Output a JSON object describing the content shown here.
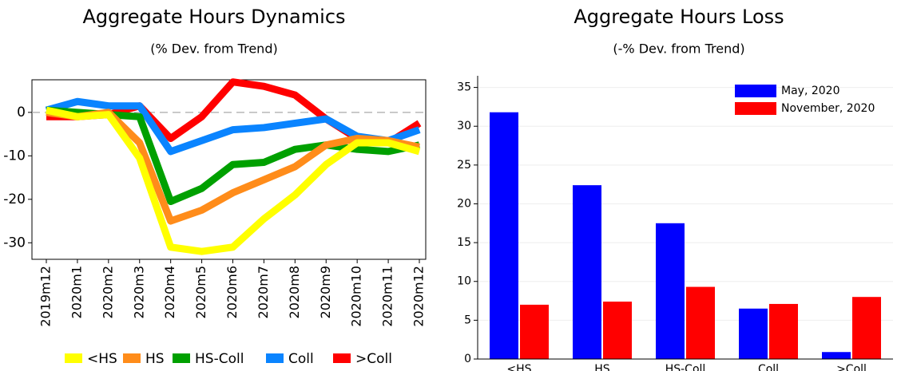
{
  "chart_data": [
    {
      "type": "line",
      "title": "Aggregate Hours Dynamics",
      "subtitle": "(% Dev. from Trend)",
      "categories": [
        "2019m12",
        "2020m1",
        "2020m2",
        "2020m3",
        "2020m4",
        "2020m5",
        "2020m6",
        "2020m7",
        "2020m8",
        "2020m9",
        "2020m10",
        "2020m11",
        "2020m12"
      ],
      "series": [
        {
          "name": "<HS",
          "color": "#ffff00",
          "values": [
            0.5,
            -1,
            -0.5,
            -10.5,
            -31,
            -32,
            -31,
            -24.5,
            -19,
            -12,
            -7,
            -7,
            -9
          ]
        },
        {
          "name": "HS",
          "color": "#ff8c1a",
          "values": [
            0,
            -1,
            0,
            -7,
            -25,
            -22.5,
            -18.5,
            -15.5,
            -12.5,
            -7.5,
            -6,
            -6.5,
            -8
          ]
        },
        {
          "name": "HS-Coll",
          "color": "#00a000",
          "values": [
            0.5,
            0,
            -0.5,
            -1,
            -20.5,
            -17.5,
            -12,
            -11.5,
            -8.5,
            -7.5,
            -8.5,
            -9,
            -7.5
          ]
        },
        {
          "name": "Coll",
          "color": "#0a84ff",
          "values": [
            0.5,
            2.5,
            1.5,
            1.5,
            -9,
            -6.5,
            -4,
            -3.5,
            -2.5,
            -1.5,
            -5.5,
            -6.5,
            -4
          ]
        },
        {
          "name": ">Coll",
          "color": "#ff0000",
          "values": [
            -1,
            -1,
            -0.5,
            1.5,
            -6,
            -1,
            7,
            6,
            4,
            -1.5,
            -6,
            -7,
            -2.5
          ]
        }
      ],
      "ylim": [
        -33.8,
        7.5
      ],
      "yticks": [
        0,
        -10,
        -20,
        -30
      ],
      "reference_line": 0,
      "legend": "bottom"
    },
    {
      "type": "bar",
      "title": "Aggregate Hours Loss",
      "subtitle": "(-% Dev. from Trend)",
      "categories": [
        "<HS",
        "HS",
        "HS-Coll",
        "Coll",
        ">Coll"
      ],
      "series": [
        {
          "name": "May, 2020",
          "color": "#0000ff",
          "values": [
            31.8,
            22.4,
            17.5,
            6.5,
            0.9
          ]
        },
        {
          "name": "November, 2020",
          "color": "#ff0000",
          "values": [
            7.0,
            7.4,
            9.3,
            7.1,
            8.0
          ]
        }
      ],
      "ylim": [
        0,
        36.5
      ],
      "yticks": [
        0,
        5,
        10,
        15,
        20,
        25,
        30,
        35
      ],
      "grid": true,
      "legend": "upper right"
    }
  ]
}
